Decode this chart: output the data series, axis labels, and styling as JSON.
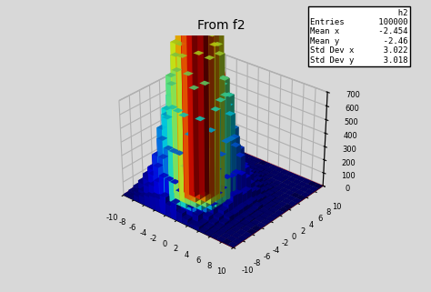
{
  "title": "From f2",
  "entries": 100000,
  "mean_x": -2.454,
  "mean_y": -2.46,
  "std_x": 3.022,
  "std_y": 3.018,
  "xrange": [
    -10,
    10
  ],
  "yrange": [
    -10,
    10
  ],
  "zmax": 700,
  "nbins": 20,
  "legend_title": "h2",
  "background_color": "#e8e8e8",
  "elev": 30,
  "azim": -50
}
